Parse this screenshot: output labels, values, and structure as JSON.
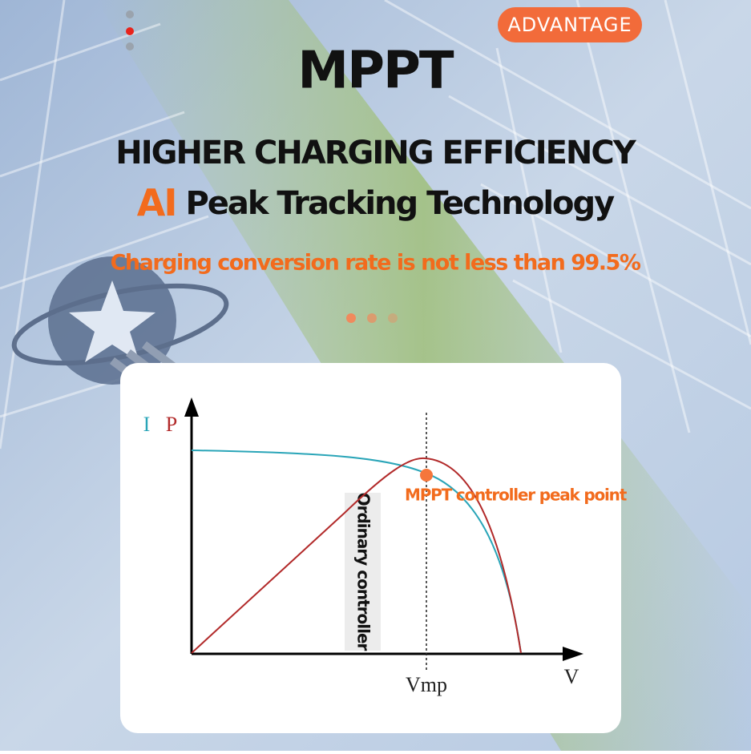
{
  "badge": "ADVANTAGE",
  "title": "MPPT",
  "headline": "HIGHER CHARGING EFFICIENCY",
  "subheadline": {
    "highlight": "AI",
    "text": "Peak Tracking Technology"
  },
  "note": "Charging conversion rate is not less than 99.5%",
  "diagram": {
    "current_label": "I",
    "power_label": "P",
    "x_label": "V",
    "vmp_label": "Vmp",
    "peak_label": "MPPT controller peak point",
    "ordinary_label": "Ordinary controller"
  }
}
